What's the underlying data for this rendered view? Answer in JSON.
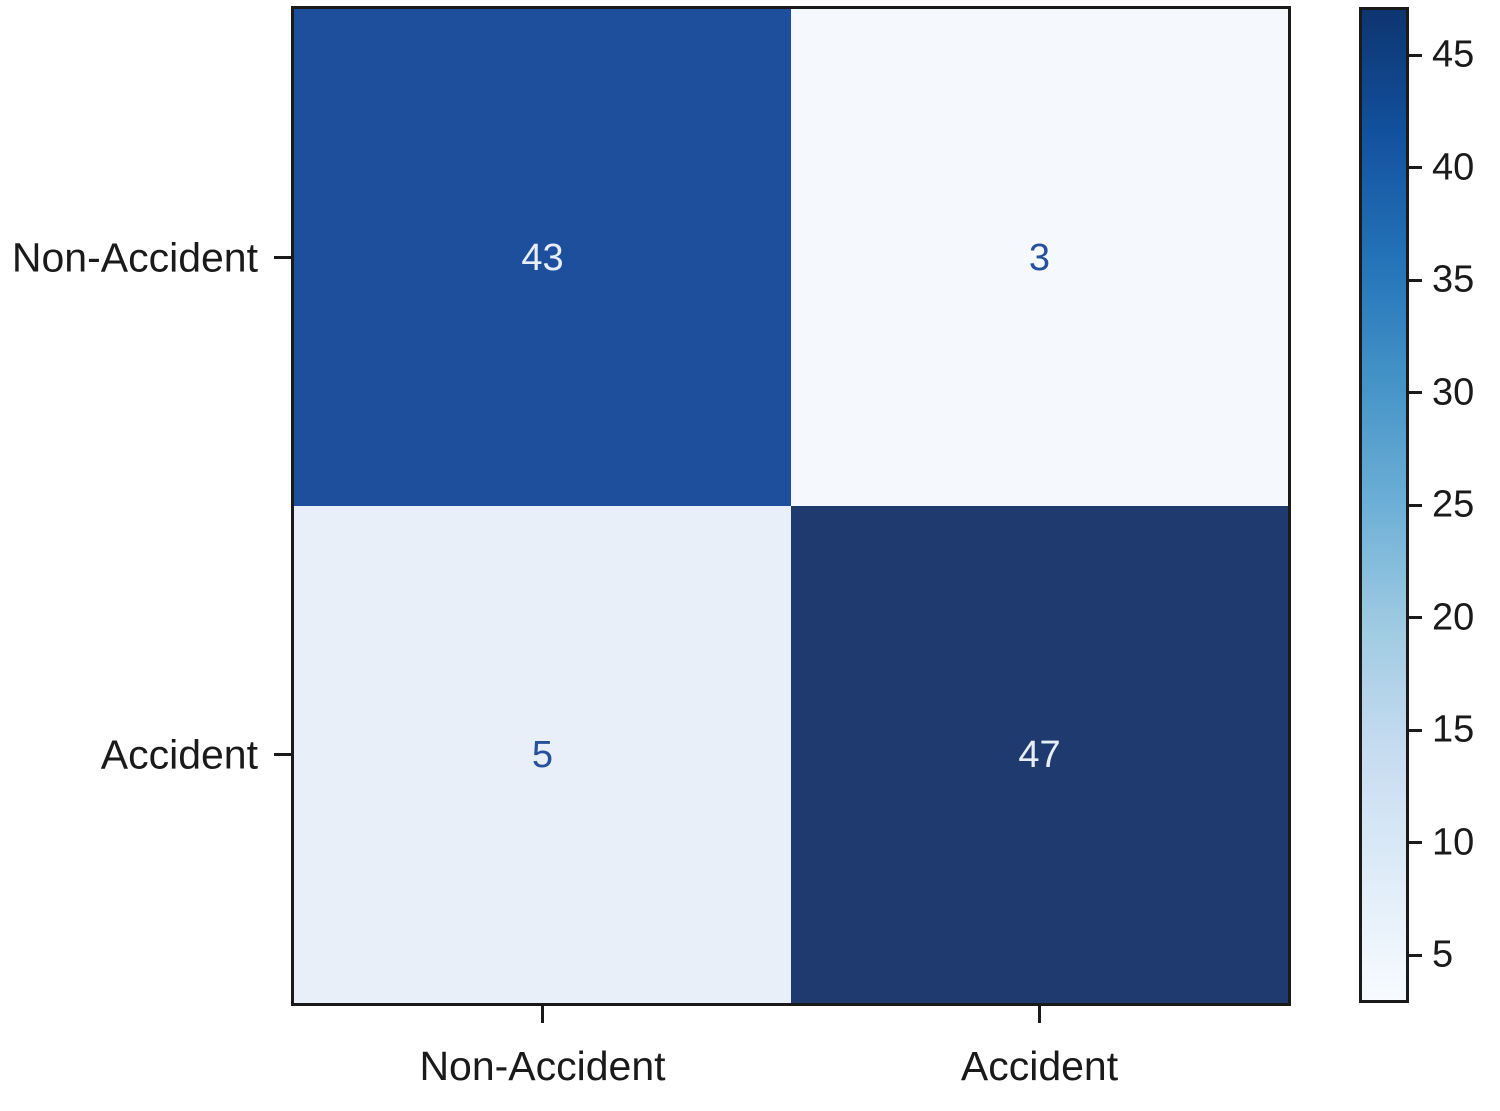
{
  "chart_data": {
    "type": "heatmap",
    "title": "",
    "xlabel": "",
    "ylabel": "",
    "x_categories": [
      "Non-Accident",
      "Accident"
    ],
    "y_categories": [
      "Non-Accident",
      "Accident"
    ],
    "matrix": [
      [
        43,
        3
      ],
      [
        5,
        47
      ]
    ],
    "vmin": 3,
    "vmax": 47,
    "colormap": "Blues",
    "grid": false,
    "legend_position": "right-colorbar",
    "colorbar_ticks": [
      5,
      10,
      15,
      20,
      25,
      30,
      35,
      40,
      45
    ],
    "cell_colors": [
      [
        "#1d4f9c",
        "#f5f9fd"
      ],
      [
        "#e9eff8",
        "#1f3a6f"
      ]
    ],
    "cell_text_colors": [
      [
        "#e8eef8",
        "#27519b"
      ],
      [
        "#27519b",
        "#e8eef8"
      ]
    ],
    "colorbar_gradient_top_to_bottom": [
      "#0d3570",
      "#12519e",
      "#2472b8",
      "#4493c7",
      "#6dafd7",
      "#9fcbe2",
      "#c7dcf0",
      "#dfecf8",
      "#f7fbff"
    ]
  },
  "colors": {
    "axis": "#1a1a1a",
    "background": "#ffffff"
  }
}
